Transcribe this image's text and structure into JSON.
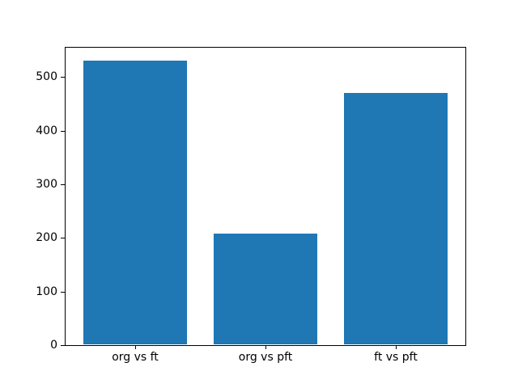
{
  "chart_data": {
    "type": "bar",
    "categories": [
      "org vs ft",
      "org vs pft",
      "ft vs pft"
    ],
    "values": [
      530,
      208,
      470
    ],
    "title": "",
    "xlabel": "",
    "ylabel": "",
    "yticks": [
      0,
      100,
      200,
      300,
      400,
      500
    ],
    "ylim": [
      0,
      556.5
    ],
    "xlim": [
      -0.54,
      2.54
    ],
    "bar_width": 0.8,
    "grid": false,
    "legend": false,
    "colors": {
      "bar": "#1f77b4",
      "axis": "#000000",
      "background": "#ffffff",
      "text": "#000000"
    }
  }
}
